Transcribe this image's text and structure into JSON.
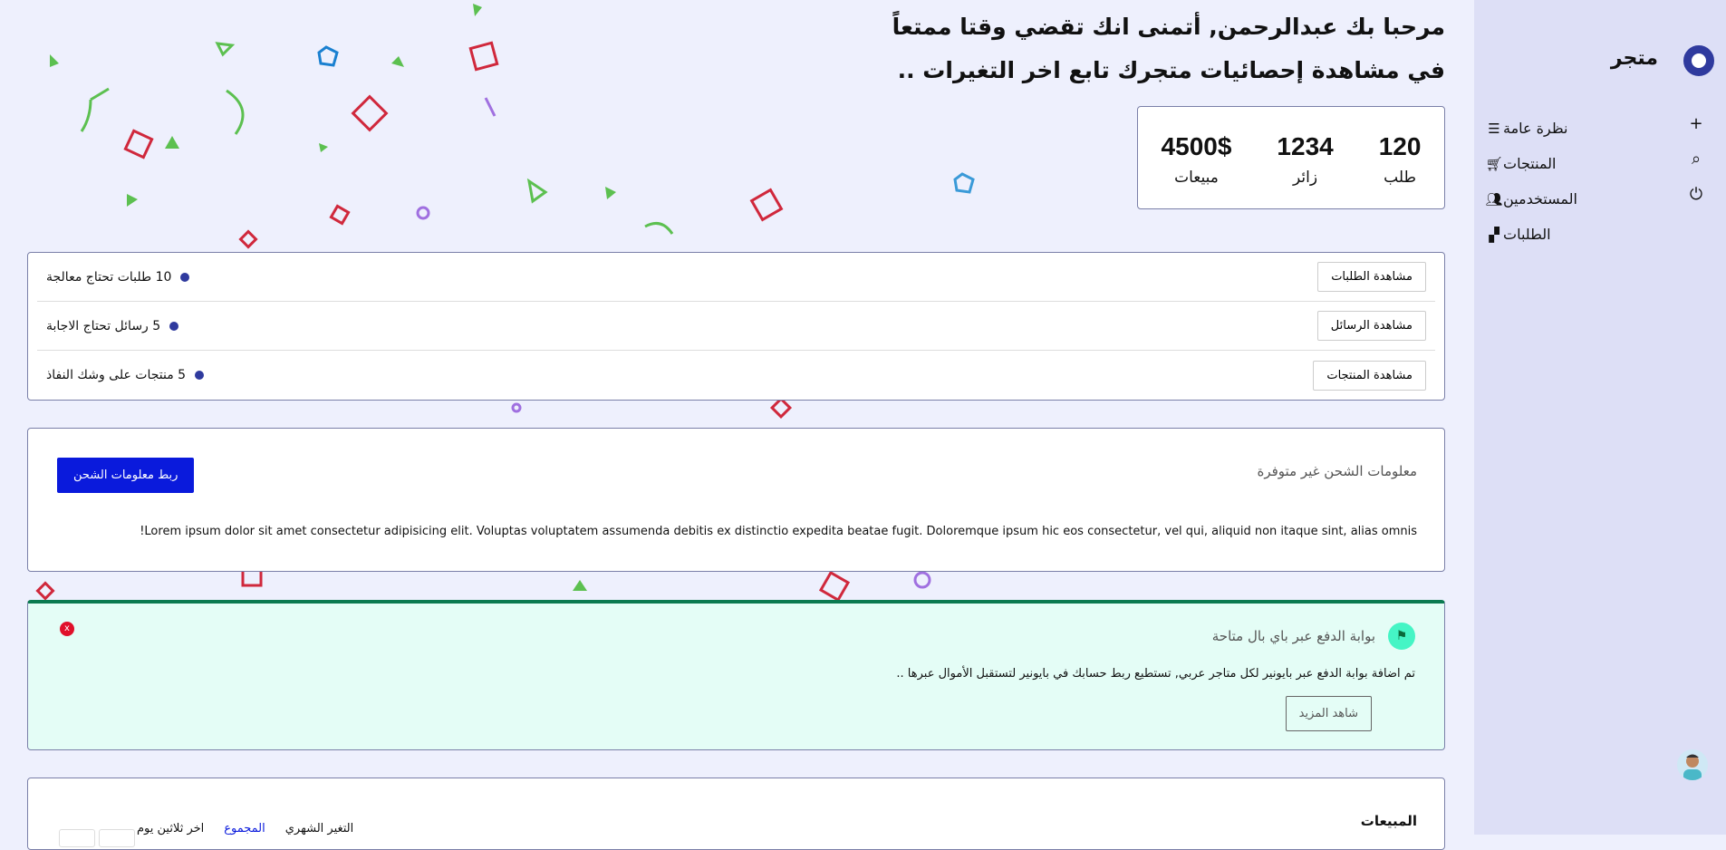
{
  "sidebar": {
    "brand": "متجر",
    "items": [
      {
        "label": "نظرة عامة",
        "icon": "list-icon"
      },
      {
        "label": "المنتجات",
        "icon": "cart-icon"
      },
      {
        "label": "المستخدمين",
        "icon": "users-icon"
      },
      {
        "label": "الطلبات",
        "icon": "boxes-icon"
      }
    ],
    "tools": [
      "plus-icon",
      "search-icon",
      "power-icon"
    ]
  },
  "welcome": {
    "line1": "مرحبا بك عبدالرحمن, أتمنى انك تقضي وقتا ممتعاً",
    "line2": "في مشاهدة إحصائيات متجرك تابع اخر التغيرات .."
  },
  "stats": [
    {
      "value": "120",
      "label": "طلب"
    },
    {
      "value": "1234",
      "label": "زائر"
    },
    {
      "value": "4500$",
      "label": "مبيعات"
    }
  ],
  "tasks": [
    {
      "text": "10 طلبات تحتاج معالجة",
      "button": "مشاهدة الطلبات"
    },
    {
      "text": "5 رسائل تحتاج الاجابة",
      "button": "مشاهدة الرسائل"
    },
    {
      "text": "5 منتجات على وشك النفاذ",
      "button": "مشاهدة المنتجات"
    }
  ],
  "shipping": {
    "title": "معلومات الشحن غير متوفرة",
    "button": "ربط معلومات الشحن",
    "body": "Lorem ipsum dolor sit amet consectetur adipisicing elit. Voluptas voluptatem assumenda debitis ex distinctio expedita beatae fugit. Doloremque ipsum hic eos consectetur, vel qui, aliquid non itaque sint, alias omnis!"
  },
  "notice": {
    "title": "بوابة الدفع عبر باي بال متاحة",
    "body": "تم اضافة بوابة الدفع عبر بايونير لكل متاجر عربي, تستطيع ربط حسابك في بايونير لتستقبل الأموال عبرها ..",
    "button": "شاهد المزيد",
    "close": "x"
  },
  "sales": {
    "title": "المبيعات",
    "tabs": [
      "التغير الشهري",
      "المجموع",
      "اخر ثلاثين يوم"
    ]
  },
  "colors": {
    "accent": "#2f3a9e",
    "primary_button": "#0a1adc",
    "notice_bg": "#e4fdf6",
    "notice_border": "#0a7a50",
    "sidebar_bg": "#dddff6",
    "page_bg": "#eef0fd"
  }
}
